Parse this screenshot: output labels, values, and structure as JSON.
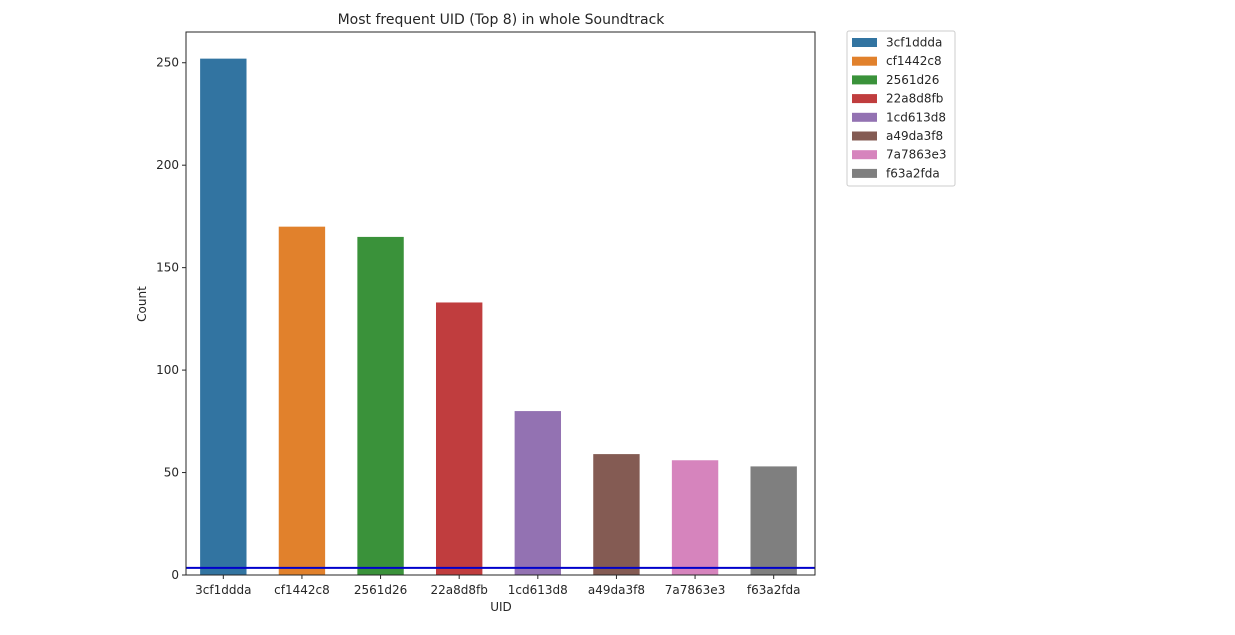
{
  "chart_data": {
    "type": "bar",
    "title": "Most frequent UID (Top 8) in whole Soundtrack",
    "xlabel": "UID",
    "ylabel": "Count",
    "categories": [
      "3cf1ddda",
      "cf1442c8",
      "2561d26",
      "22a8d8fb",
      "1cd613d8",
      "a49da3f8",
      "7a7863e3",
      "f63a2fda"
    ],
    "values": [
      252,
      170,
      165,
      133,
      80,
      59,
      56,
      53
    ],
    "colors": [
      "#3274a1",
      "#e1812c",
      "#3a923a",
      "#c03d3e",
      "#9372b2",
      "#845b53",
      "#d684bd",
      "#7f7f7f"
    ],
    "ylim": [
      0,
      265
    ],
    "yticks": [
      0,
      50,
      100,
      150,
      200,
      250
    ],
    "hline": {
      "y": 3.5,
      "color": "#0000cc"
    },
    "legend": {
      "placement": "outside-top-right",
      "entries": [
        "3cf1ddda",
        "cf1442c8",
        "2561d26",
        "22a8d8fb",
        "1cd613d8",
        "a49da3f8",
        "7a7863e3",
        "f63a2fda"
      ]
    },
    "grid": false
  }
}
